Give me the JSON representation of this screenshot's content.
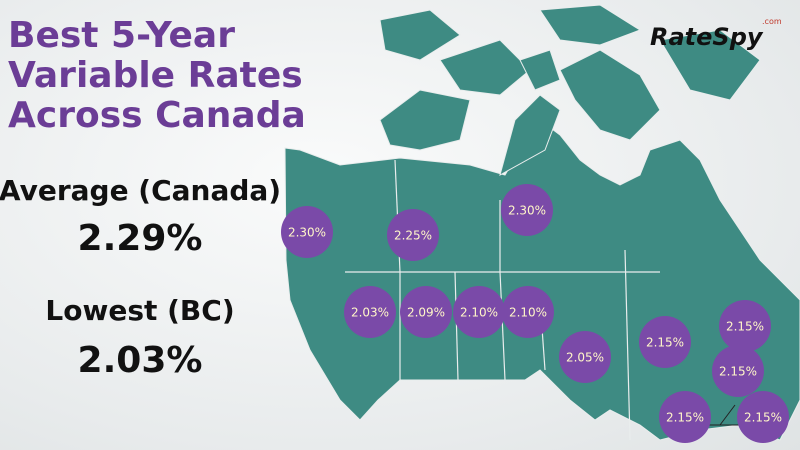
{
  "header": {
    "title_lines": [
      "Best 5-Year",
      "Variable Rates",
      "Across Canada"
    ],
    "logo": "RateSpy",
    "logo_suffix": ".com"
  },
  "summary": {
    "average_label": "Average (Canada)",
    "average_value": "2.29%",
    "lowest_label": "Lowest (BC)",
    "lowest_value": "2.03%"
  },
  "regions": [
    {
      "rate": "2.30%"
    },
    {
      "rate": "2.25%"
    },
    {
      "rate": "2.30%"
    },
    {
      "rate": "2.03%"
    },
    {
      "rate": "2.09%"
    },
    {
      "rate": "2.10%"
    },
    {
      "rate": "2.10%"
    },
    {
      "rate": "2.05%"
    },
    {
      "rate": "2.15%"
    },
    {
      "rate": "2.15%"
    },
    {
      "rate": "2.15%"
    },
    {
      "rate": "2.15%"
    },
    {
      "rate": "2.15%"
    }
  ]
}
